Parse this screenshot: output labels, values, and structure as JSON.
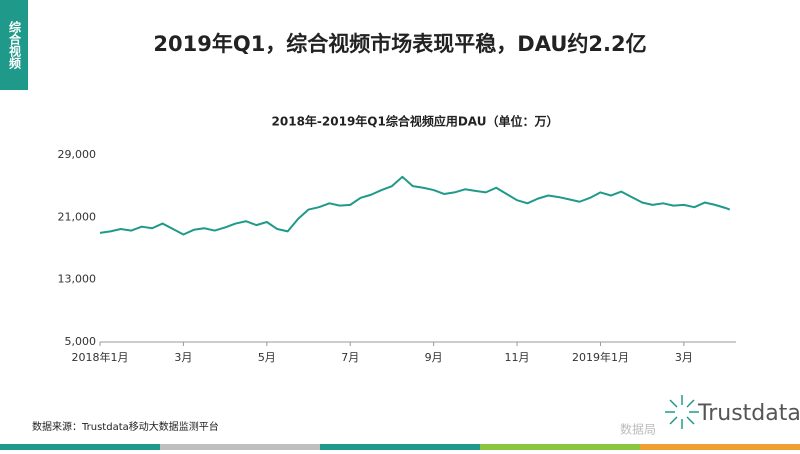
{
  "side_tag": "综合视频",
  "chart_data": {
    "type": "line",
    "title": "2019年Q1，综合视频市场表现平稳，DAU约2.2亿",
    "subtitle": "2018年-2019年Q1综合视频应用DAU（单位：万）",
    "x": [
      0,
      0.25,
      0.5,
      0.75,
      1,
      1.25,
      1.5,
      1.75,
      2,
      2.25,
      2.5,
      2.75,
      3,
      3.25,
      3.5,
      3.75,
      4,
      4.25,
      4.5,
      4.75,
      5,
      5.25,
      5.5,
      5.75,
      6,
      6.25,
      6.5,
      6.75,
      7,
      7.25,
      7.5,
      7.75,
      8,
      8.25,
      8.5,
      8.75,
      9,
      9.25,
      9.5,
      9.75,
      10,
      10.25,
      10.5,
      10.75,
      11,
      11.25,
      11.5,
      11.75,
      12,
      12.25,
      12.5,
      12.75,
      13,
      13.25,
      13.5,
      13.75,
      14,
      14.25,
      14.5,
      14.75,
      15,
      15.1
    ],
    "series": [
      {
        "name": "DAU",
        "color": "#1f9a8a",
        "values": [
          19000,
          19200,
          19500,
          19300,
          19800,
          19600,
          20200,
          19500,
          18800,
          19400,
          19600,
          19300,
          19700,
          20200,
          20500,
          20000,
          20400,
          19500,
          19200,
          20800,
          22000,
          22300,
          22800,
          22500,
          22600,
          23500,
          23900,
          24500,
          25000,
          26200,
          25000,
          24800,
          24500,
          24000,
          24200,
          24600,
          24400,
          24200,
          24800,
          24000,
          23200,
          22800,
          23400,
          23800,
          23600,
          23300,
          23000,
          23500,
          24200,
          23800,
          24300,
          23600,
          22900,
          22600,
          22800,
          22500,
          22600,
          22300,
          22900,
          22600,
          22200,
          22000
        ]
      }
    ],
    "xlim": [
      0,
      15.25
    ],
    "xticks": [
      {
        "value": 0,
        "label": "2018年1月"
      },
      {
        "value": 2,
        "label": "3月"
      },
      {
        "value": 4,
        "label": "5月"
      },
      {
        "value": 6,
        "label": "7月"
      },
      {
        "value": 8,
        "label": "9月"
      },
      {
        "value": 10,
        "label": "11月"
      },
      {
        "value": 12,
        "label": "2019年1月"
      },
      {
        "value": 14,
        "label": "3月"
      }
    ],
    "ylim": [
      5000,
      29000
    ],
    "yticks": [
      {
        "value": 5000,
        "label": "5,000"
      },
      {
        "value": 13000,
        "label": "13,000"
      },
      {
        "value": 21000,
        "label": "21,000"
      },
      {
        "value": 29000,
        "label": "29,000"
      }
    ],
    "grid": false
  },
  "source": "数据来源：Trustdata移动大数据监测平台",
  "watermark": "数据局",
  "logo": "Trustdata"
}
